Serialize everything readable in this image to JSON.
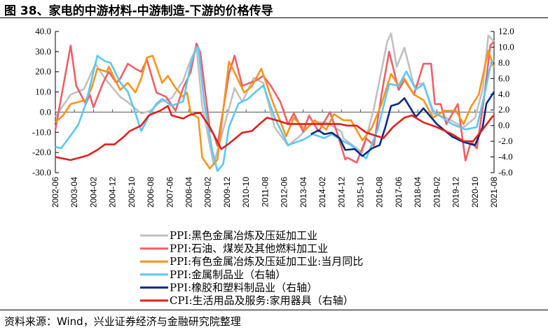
{
  "title": "图 38、家电的中游材料-中游制造-下游的价格传导",
  "source": "资料来源：Wind，兴业证券经济与金融研究院整理",
  "chart_data": {
    "type": "line",
    "title": "图 38、家电的中游材料-中游制造-下游的价格传导",
    "x_start": "2002-06",
    "x_end": "2021-08",
    "x_tick_labels": [
      "2002-06",
      "2003-04",
      "2004-02",
      "2004-12",
      "2005-10",
      "2006-08",
      "2007-06",
      "2008-04",
      "2009-02",
      "2009-12",
      "2010-10",
      "2011-08",
      "2012-06",
      "2013-04",
      "2014-02",
      "2014-12",
      "2015-10",
      "2016-08",
      "2017-06",
      "2018-04",
      "2019-02",
      "2019-12",
      "2020-10",
      "2021-08"
    ],
    "y_left": {
      "lim": [
        -30,
        40
      ],
      "ticks": [
        "40.0",
        "30.0",
        "20.0",
        "10.0",
        "0.0",
        "-10.0",
        "-20.0",
        "-30.0"
      ]
    },
    "y_right": {
      "lim": [
        -6,
        12
      ],
      "ticks": [
        "12.0",
        "10.0",
        "8.0",
        "6.0",
        "4.0",
        "2.0",
        "0.0",
        "-2.0",
        "-4.0",
        "-6.0"
      ]
    },
    "grid": false,
    "legend_position": "bottom",
    "series": [
      {
        "name": "PPI:黑色金属冶炼及压延加工业",
        "axis": "left",
        "color": "#c0c0c0",
        "points": [
          [
            "2002-06",
            -2.4
          ],
          [
            "2003-02",
            8.7
          ],
          [
            "2003-09",
            11.4
          ],
          [
            "2004-03",
            24
          ],
          [
            "2004-08",
            16.6
          ],
          [
            "2005-04",
            7.6
          ],
          [
            "2005-08",
            5
          ],
          [
            "2006-03",
            -0.7
          ],
          [
            "2006-08",
            0.7
          ],
          [
            "2007-01",
            5
          ],
          [
            "2007-07",
            7
          ],
          [
            "2008-01",
            15.6
          ],
          [
            "2008-05",
            26
          ],
          [
            "2008-08",
            32
          ],
          [
            "2008-11",
            3
          ],
          [
            "2009-05",
            -26
          ],
          [
            "2010-04",
            12
          ],
          [
            "2010-08",
            5
          ],
          [
            "2011-02",
            17
          ],
          [
            "2011-07",
            14.5
          ],
          [
            "2012-01",
            -7.6
          ],
          [
            "2012-08",
            -16.6
          ],
          [
            "2013-02",
            -12
          ],
          [
            "2013-09",
            -5
          ],
          [
            "2014-04",
            -5
          ],
          [
            "2014-12",
            -9.7
          ],
          [
            "2015-01",
            -13
          ],
          [
            "2015-11",
            -20
          ],
          [
            "2016-05",
            1.7
          ],
          [
            "2016-12",
            35
          ],
          [
            "2017-02",
            39
          ],
          [
            "2017-05",
            22.5
          ],
          [
            "2017-09",
            32
          ],
          [
            "2018-02",
            13
          ],
          [
            "2018-07",
            14.5
          ],
          [
            "2018-12",
            -0.7
          ],
          [
            "2019-07",
            -2.8
          ],
          [
            "2020-04",
            -7.6
          ],
          [
            "2020-10",
            -2.8
          ],
          [
            "2021-02",
            11
          ],
          [
            "2021-05",
            38
          ],
          [
            "2021-08",
            35
          ]
        ]
      },
      {
        "name": "PPI:石油、煤炭及其他燃料加工业",
        "axis": "left",
        "color": "#ef5f68",
        "points": [
          [
            "2002-06",
            -8.7
          ],
          [
            "2003-02",
            33
          ],
          [
            "2003-05",
            13
          ],
          [
            "2003-10",
            4
          ],
          [
            "2003-12",
            8.7
          ],
          [
            "2004-02",
            2.4
          ],
          [
            "2004-07",
            14.5
          ],
          [
            "2004-10",
            20
          ],
          [
            "2005-02",
            14.5
          ],
          [
            "2005-04",
            16.6
          ],
          [
            "2005-08",
            24
          ],
          [
            "2005-12",
            21.5
          ],
          [
            "2006-03",
            20
          ],
          [
            "2006-06",
            26
          ],
          [
            "2006-11",
            9.7
          ],
          [
            "2007-04",
            7.6
          ],
          [
            "2007-09",
            0.7
          ],
          [
            "2008-01",
            12
          ],
          [
            "2008-05",
            20
          ],
          [
            "2008-08",
            34
          ],
          [
            "2008-10",
            29.5
          ],
          [
            "2009-03",
            -8.7
          ],
          [
            "2009-05",
            -11
          ],
          [
            "2009-07",
            -16.6
          ],
          [
            "2010-01",
            19
          ],
          [
            "2010-04",
            28
          ],
          [
            "2010-08",
            13
          ],
          [
            "2011-03",
            15.6
          ],
          [
            "2011-07",
            18
          ],
          [
            "2011-11",
            13
          ],
          [
            "2012-04",
            5
          ],
          [
            "2012-08",
            -6
          ],
          [
            "2012-11",
            -0.7
          ],
          [
            "2013-04",
            -9.7
          ],
          [
            "2013-07",
            -1.7
          ],
          [
            "2013-12",
            -9.7
          ],
          [
            "2014-06",
            0
          ],
          [
            "2014-10",
            -11
          ],
          [
            "2015-02",
            -23.5
          ],
          [
            "2015-03",
            -22.5
          ],
          [
            "2015-08",
            -25
          ],
          [
            "2016-01",
            -13
          ],
          [
            "2016-05",
            -16.6
          ],
          [
            "2016-09",
            8.7
          ],
          [
            "2017-01",
            30
          ],
          [
            "2017-06",
            11
          ],
          [
            "2017-09",
            16
          ],
          [
            "2018-02",
            8.7
          ],
          [
            "2018-07",
            24
          ],
          [
            "2018-11",
            24
          ],
          [
            "2019-01",
            4
          ],
          [
            "2019-04",
            4
          ],
          [
            "2019-07",
            -6
          ],
          [
            "2020-01",
            4
          ],
          [
            "2020-05",
            -24
          ],
          [
            "2020-08",
            -14.5
          ],
          [
            "2020-11",
            -18
          ],
          [
            "2021-03",
            8.7
          ],
          [
            "2021-06",
            33
          ],
          [
            "2021-08",
            35
          ]
        ]
      },
      {
        "name": "PPI:有色金属冶炼及压延加工业:当月同比",
        "axis": "left",
        "color": "#f7941d",
        "points": [
          [
            "2002-06",
            -5
          ],
          [
            "2002-10",
            -1.7
          ],
          [
            "2003-02",
            4
          ],
          [
            "2003-10",
            6
          ],
          [
            "2004-01",
            12
          ],
          [
            "2004-04",
            21.5
          ],
          [
            "2004-09",
            20
          ],
          [
            "2004-10",
            22.5
          ],
          [
            "2005-04",
            11
          ],
          [
            "2005-08",
            14.5
          ],
          [
            "2005-12",
            9.7
          ],
          [
            "2006-03",
            16.6
          ],
          [
            "2006-06",
            27
          ],
          [
            "2006-09",
            28
          ],
          [
            "2007-02",
            14.5
          ],
          [
            "2007-05",
            18
          ],
          [
            "2007-09",
            12
          ],
          [
            "2008-01",
            7.6
          ],
          [
            "2008-03",
            9.7
          ],
          [
            "2008-05",
            -0.7
          ],
          [
            "2008-09",
            -2.8
          ],
          [
            "2008-11",
            -22.5
          ],
          [
            "2009-03",
            -28
          ],
          [
            "2009-07",
            -23.5
          ],
          [
            "2010-01",
            25
          ],
          [
            "2010-03",
            21.5
          ],
          [
            "2010-09",
            9.7
          ],
          [
            "2011-01",
            12.8
          ],
          [
            "2011-06",
            21.5
          ],
          [
            "2011-12",
            5
          ],
          [
            "2012-07",
            -12
          ],
          [
            "2012-11",
            -2.8
          ],
          [
            "2013-05",
            -8.7
          ],
          [
            "2013-10",
            -4
          ],
          [
            "2014-04",
            -8.7
          ],
          [
            "2014-08",
            -1
          ],
          [
            "2015-01",
            -4
          ],
          [
            "2015-05",
            -4
          ],
          [
            "2015-11",
            -14
          ],
          [
            "2016-04",
            -7.6
          ],
          [
            "2016-09",
            4
          ],
          [
            "2017-02",
            19
          ],
          [
            "2017-06",
            13
          ],
          [
            "2017-09",
            16.6
          ],
          [
            "2018-02",
            8.7
          ],
          [
            "2018-07",
            6
          ],
          [
            "2018-12",
            -2.8
          ],
          [
            "2019-06",
            0.7
          ],
          [
            "2019-12",
            0.7
          ],
          [
            "2020-04",
            -6
          ],
          [
            "2020-08",
            2.8
          ],
          [
            "2020-12",
            8.7
          ],
          [
            "2021-05",
            30.5
          ],
          [
            "2021-08",
            22
          ]
        ]
      },
      {
        "name": "PPI:金属制品业（右轴）",
        "axis": "right",
        "color": "#5bc8f0",
        "points": [
          [
            "2002-06",
            -2.7
          ],
          [
            "2002-09",
            -2.9
          ],
          [
            "2003-01",
            -1.6
          ],
          [
            "2003-06",
            0.1
          ],
          [
            "2003-10",
            2.8
          ],
          [
            "2004-04",
            8.9
          ],
          [
            "2004-08",
            8.2
          ],
          [
            "2004-11",
            8
          ],
          [
            "2005-04",
            5.5
          ],
          [
            "2005-08",
            4.3
          ],
          [
            "2005-12",
            1.6
          ],
          [
            "2006-03",
            -0.7
          ],
          [
            "2006-08",
            1.6
          ],
          [
            "2006-11",
            2.8
          ],
          [
            "2007-02",
            3.4
          ],
          [
            "2007-07",
            2.5
          ],
          [
            "2008-01",
            3.1
          ],
          [
            "2008-05",
            7.8
          ],
          [
            "2008-08",
            10
          ],
          [
            "2008-09",
            10
          ],
          [
            "2008-12",
            3.1
          ],
          [
            "2009-04",
            -2.9
          ],
          [
            "2009-07",
            -5.8
          ],
          [
            "2009-10",
            -4.9
          ],
          [
            "2010-01",
            -0.2
          ],
          [
            "2010-06",
            2.8
          ],
          [
            "2010-11",
            3.4
          ],
          [
            "2011-03",
            4.3
          ],
          [
            "2011-07",
            5.1
          ],
          [
            "2012-01",
            1
          ],
          [
            "2012-08",
            -2.5
          ],
          [
            "2013-04",
            -1.8
          ],
          [
            "2013-09",
            -1.1
          ],
          [
            "2014-03",
            -1.6
          ],
          [
            "2014-07",
            -1.1
          ],
          [
            "2015-01",
            -2
          ],
          [
            "2015-05",
            -2.5
          ],
          [
            "2016-01",
            -4.2
          ],
          [
            "2016-07",
            -0.5
          ],
          [
            "2017-01",
            5.3
          ],
          [
            "2017-06",
            5.1
          ],
          [
            "2017-10",
            6.9
          ],
          [
            "2018-03",
            4.6
          ],
          [
            "2018-07",
            5.3
          ],
          [
            "2018-12",
            1.9
          ],
          [
            "2019-05",
            1
          ],
          [
            "2019-10",
            0.2
          ],
          [
            "2020-05",
            -0.5
          ],
          [
            "2020-11",
            -0.2
          ],
          [
            "2021-03",
            4
          ],
          [
            "2021-06",
            7.5
          ],
          [
            "2021-08",
            8.4
          ]
        ]
      },
      {
        "name": "PPI:橡胶和塑料制品业（右轴）",
        "axis": "right",
        "color": "#0b2a80",
        "points": [
          [
            "2013-08",
            -1.1
          ],
          [
            "2013-12",
            -0.6
          ],
          [
            "2014-03",
            -1.1
          ],
          [
            "2014-07",
            -0.9
          ],
          [
            "2014-11",
            -1.6
          ],
          [
            "2015-02",
            -3.1
          ],
          [
            "2015-07",
            -3
          ],
          [
            "2015-11",
            -3.9
          ],
          [
            "2016-04",
            -2.9
          ],
          [
            "2016-08",
            -2.5
          ],
          [
            "2016-11",
            -0.2
          ],
          [
            "2017-02",
            2.5
          ],
          [
            "2017-06",
            2.8
          ],
          [
            "2017-09",
            3.5
          ],
          [
            "2018-03",
            1.1
          ],
          [
            "2018-07",
            2.2
          ],
          [
            "2019-02",
            0.2
          ],
          [
            "2019-10",
            -1.4
          ],
          [
            "2020-04",
            -2.1
          ],
          [
            "2020-10",
            -2.5
          ],
          [
            "2021-02",
            -0.2
          ],
          [
            "2021-04",
            2.8
          ],
          [
            "2021-08",
            4.3
          ]
        ]
      },
      {
        "name": "CPI:生活用品及服务:家用器具（右轴）",
        "axis": "right",
        "color": "#e0201c",
        "points": [
          [
            "2002-06",
            -4
          ],
          [
            "2002-10",
            -4.2
          ],
          [
            "2003-02",
            -4.4
          ],
          [
            "2003-08",
            -4
          ],
          [
            "2003-11",
            -3.8
          ],
          [
            "2004-04",
            -3.1
          ],
          [
            "2004-08",
            -2.4
          ],
          [
            "2005-01",
            -2.4
          ],
          [
            "2005-06",
            -1.4
          ],
          [
            "2005-09",
            -0.7
          ],
          [
            "2006-03",
            0
          ],
          [
            "2006-07",
            1.3
          ],
          [
            "2007-01",
            1.9
          ],
          [
            "2007-05",
            2.5
          ],
          [
            "2007-07",
            1.3
          ],
          [
            "2008-01",
            0.9
          ],
          [
            "2008-04",
            1.3
          ],
          [
            "2008-08",
            1.6
          ],
          [
            "2008-10",
            1.6
          ],
          [
            "2009-03",
            -0.2
          ],
          [
            "2009-09",
            -3
          ],
          [
            "2010-01",
            -2.3
          ],
          [
            "2010-08",
            -0.9
          ],
          [
            "2011-01",
            -0.7
          ],
          [
            "2011-06",
            0.4
          ],
          [
            "2011-09",
            1
          ],
          [
            "2012-03",
            0.6
          ],
          [
            "2012-08",
            0.2
          ],
          [
            "2013-09",
            0.2
          ],
          [
            "2014-11",
            0.2
          ],
          [
            "2015-03",
            0
          ],
          [
            "2015-08",
            0
          ],
          [
            "2016-01",
            -0.9
          ],
          [
            "2016-10",
            -1.6
          ],
          [
            "2017-03",
            -0.2
          ],
          [
            "2017-09",
            1
          ],
          [
            "2018-01",
            1.3
          ],
          [
            "2018-07",
            0.4
          ],
          [
            "2019-02",
            -0.2
          ],
          [
            "2019-10",
            -1.1
          ],
          [
            "2020-04",
            -2
          ],
          [
            "2020-09",
            -2
          ],
          [
            "2021-02",
            -0.5
          ],
          [
            "2021-07",
            1.1
          ],
          [
            "2021-08",
            1.3
          ]
        ]
      }
    ]
  }
}
